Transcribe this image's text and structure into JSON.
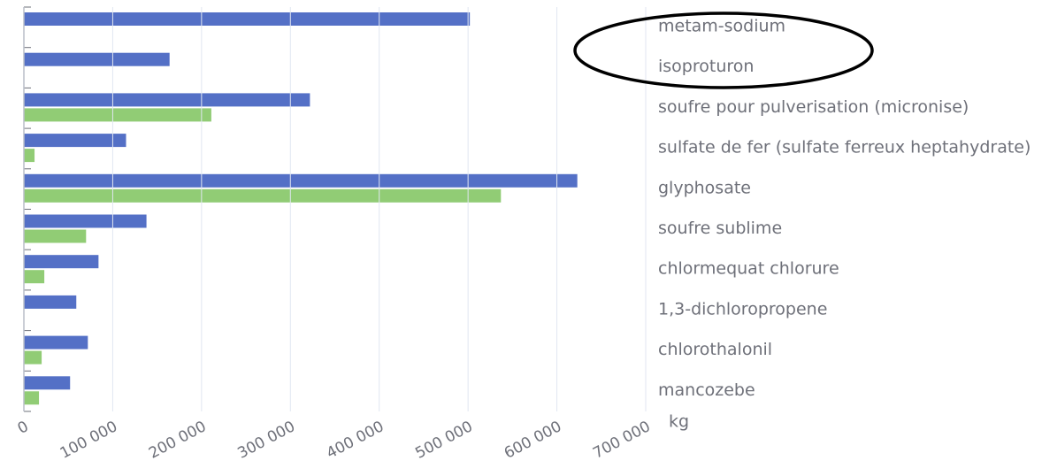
{
  "chart_data": {
    "type": "bar",
    "orientation": "horizontal",
    "categories": [
      "metam-sodium",
      "isoproturon",
      "soufre pour pulverisation (micronise)",
      "sulfate de fer (sulfate ferreux heptahydrate)",
      "glyphosate",
      "soufre sublime",
      "chlormequat chlorure",
      "1,3-dichloropropene",
      "chlorothalonil",
      "mancozebe"
    ],
    "series": [
      {
        "color": "#5470c6",
        "values": [
          502000,
          164000,
          322000,
          115000,
          623000,
          138000,
          84000,
          59000,
          72000,
          52000
        ]
      },
      {
        "color": "#91cc75",
        "values": [
          null,
          null,
          211000,
          12000,
          537000,
          70000,
          23000,
          null,
          20000,
          17000
        ]
      }
    ],
    "x_label": "kg",
    "xlim": [
      0,
      700000
    ],
    "xticks": [
      0,
      {
        "value": 100000,
        "label": "100 000"
      },
      {
        "value": 200000,
        "label": "200 000"
      },
      {
        "value": 300000,
        "label": "300 000"
      },
      {
        "value": 400000,
        "label": "400 000"
      },
      {
        "value": 500000,
        "label": "500 000"
      },
      {
        "value": 600000,
        "label": "600 000"
      },
      {
        "value": 700000,
        "label": "700 000"
      }
    ],
    "grid": true
  }
}
